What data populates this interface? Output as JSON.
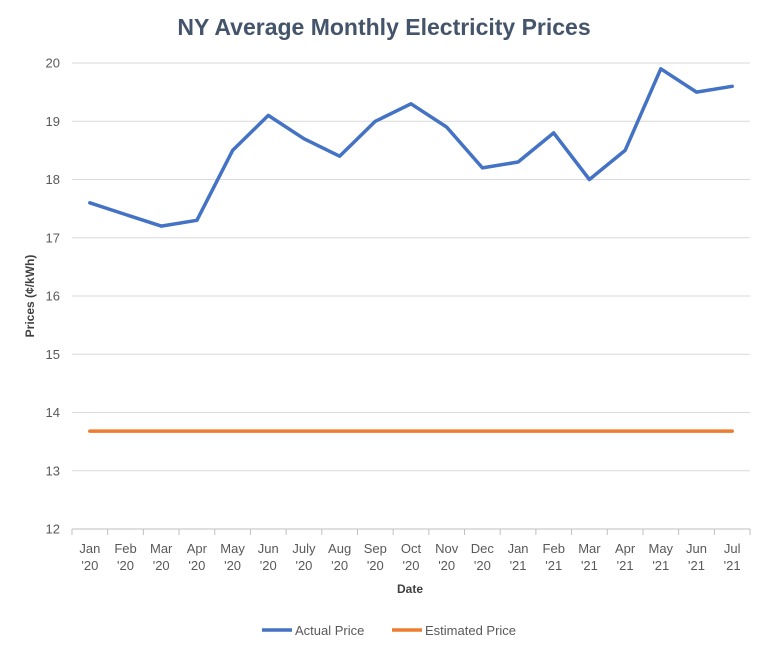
{
  "chart_data": {
    "type": "line",
    "title": "NY Average Monthly Electricity Prices",
    "xlabel": "Date",
    "ylabel": "Prices (¢/kWh)",
    "ylim": [
      12,
      20
    ],
    "yticks": [
      12,
      13,
      14,
      15,
      16,
      17,
      18,
      19,
      20
    ],
    "grid": "horizontal",
    "legend_position": "bottom",
    "categories": [
      [
        "Jan",
        "'20"
      ],
      [
        "Feb",
        "'20"
      ],
      [
        "Mar",
        "'20"
      ],
      [
        "Apr",
        "'20"
      ],
      [
        "May",
        "'20"
      ],
      [
        "Jun",
        "'20"
      ],
      [
        "July",
        "'20"
      ],
      [
        "Aug",
        "'20"
      ],
      [
        "Sep",
        "'20"
      ],
      [
        "Oct",
        "'20"
      ],
      [
        "Nov",
        "'20"
      ],
      [
        "Dec",
        "'20"
      ],
      [
        "Jan",
        "'21"
      ],
      [
        "Feb",
        "'21"
      ],
      [
        "Mar",
        "'21"
      ],
      [
        "Apr",
        "'21"
      ],
      [
        "May",
        "'21"
      ],
      [
        "Jun",
        "'21"
      ],
      [
        "Jul",
        "'21"
      ]
    ],
    "series": [
      {
        "name": "Actual Price",
        "color": "#4472c4",
        "values": [
          17.6,
          17.4,
          17.2,
          17.3,
          18.5,
          19.1,
          18.7,
          18.4,
          19.0,
          19.3,
          18.9,
          18.2,
          18.3,
          18.8,
          18.0,
          18.5,
          19.9,
          19.5,
          19.6
        ]
      },
      {
        "name": "Estimated Price",
        "color": "#ed7d31",
        "values": [
          13.68,
          13.68,
          13.68,
          13.68,
          13.68,
          13.68,
          13.68,
          13.68,
          13.68,
          13.68,
          13.68,
          13.68,
          13.68,
          13.68,
          13.68,
          13.68,
          13.68,
          13.68,
          13.68
        ]
      }
    ]
  }
}
